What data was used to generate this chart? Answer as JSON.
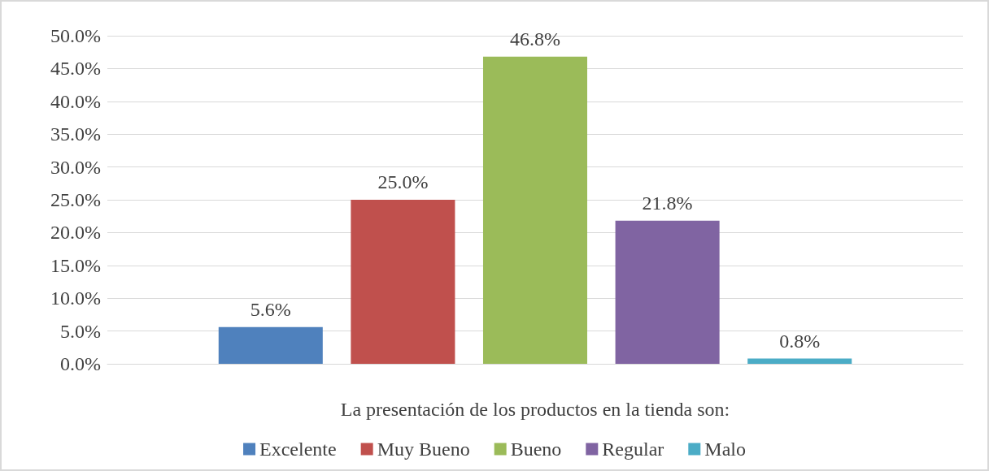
{
  "chart_data": {
    "type": "bar",
    "categories": [
      null
    ],
    "xlabel": "La presentación de los productos en la tienda son:",
    "series": [
      {
        "name": "Excelente",
        "color": "#4f81bd",
        "values": [
          5.6
        ],
        "value_labels": [
          "5.6%"
        ]
      },
      {
        "name": "Muy Bueno",
        "color": "#c0504d",
        "values": [
          25.0
        ],
        "value_labels": [
          "25.0%"
        ]
      },
      {
        "name": "Bueno",
        "color": "#9bbb59",
        "values": [
          46.8
        ],
        "value_labels": [
          "46.8%"
        ]
      },
      {
        "name": "Regular",
        "color": "#8064a2",
        "values": [
          21.8
        ],
        "value_labels": [
          "21.8%"
        ]
      },
      {
        "name": "Malo",
        "color": "#4bacc6",
        "values": [
          0.8
        ],
        "value_labels": [
          "0.8%"
        ]
      }
    ],
    "ylim": [
      0,
      50
    ],
    "yticks": [
      {
        "value": 0,
        "label": "0.0%"
      },
      {
        "value": 5,
        "label": "5.0%"
      },
      {
        "value": 10,
        "label": "10.0%"
      },
      {
        "value": 15,
        "label": "15.0%"
      },
      {
        "value": 20,
        "label": "20.0%"
      },
      {
        "value": 25,
        "label": "25.0%"
      },
      {
        "value": 30,
        "label": "30.0%"
      },
      {
        "value": 35,
        "label": "35.0%"
      },
      {
        "value": 40,
        "label": "40.0%"
      },
      {
        "value": 45,
        "label": "45.0%"
      },
      {
        "value": 50,
        "label": "50.0%"
      }
    ],
    "grid": "y",
    "legend": "bottom"
  }
}
